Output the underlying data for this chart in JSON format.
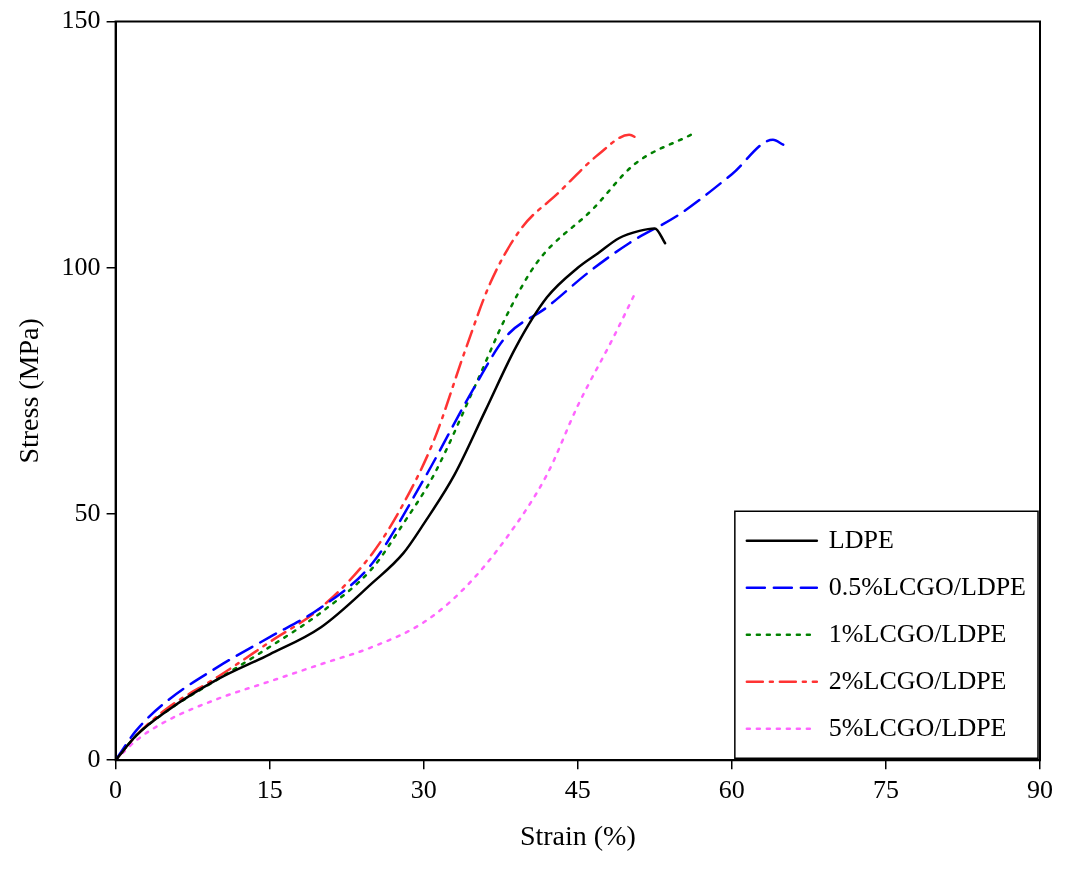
{
  "chart_data": {
    "type": "line",
    "xlabel": "Strain (%)",
    "ylabel": "Stress (MPa)",
    "xlim": [
      0,
      90
    ],
    "xticks": [
      0,
      15,
      30,
      45,
      60,
      75,
      90
    ],
    "ylim": [
      0,
      150
    ],
    "yticks": [
      0,
      50,
      100,
      150
    ],
    "grid": false,
    "legend": "bottom right",
    "marker": "none",
    "series": [
      {
        "name": "LDPE",
        "color": "#000000",
        "line_style": "solid",
        "x": [
          0,
          2,
          5,
          10,
          15,
          20,
          25,
          28,
          30,
          33,
          36,
          39,
          42,
          45,
          47,
          49,
          51,
          52.5,
          53.5
        ],
        "values": [
          0,
          5,
          10,
          16.5,
          21.5,
          27,
          36,
          42,
          48,
          58,
          71,
          84,
          94,
          100,
          103,
          106,
          107.5,
          108,
          105
        ]
      },
      {
        "name": "0.5%LCGO/LDPE",
        "color": "#0000ff",
        "line_style": "dashed",
        "x": [
          0,
          2,
          5,
          10,
          15,
          20,
          25,
          30,
          35,
          38,
          42,
          46,
          50,
          55,
          60,
          64,
          65
        ],
        "values": [
          0,
          6,
          12,
          19,
          25,
          31,
          40,
          57,
          76,
          86,
          92,
          99,
          105,
          111,
          119,
          126,
          125
        ]
      },
      {
        "name": "1%LCGO/LDPE",
        "color": "#008000",
        "line_style": "dotted",
        "x": [
          0,
          2,
          5,
          10,
          15,
          20,
          25,
          28,
          31,
          35,
          38,
          41,
          46.5,
          50.5,
          56
        ],
        "values": [
          0,
          5,
          10,
          16.5,
          23,
          30,
          39,
          48,
          58,
          76,
          90,
          101,
          112,
          121,
          127
        ]
      },
      {
        "name": "2%LCGO/LDPE",
        "color": "#ff3333",
        "line_style": "dashdot",
        "x": [
          0,
          2,
          5,
          10,
          15,
          20,
          25,
          28,
          31,
          34,
          36.5,
          39.5,
          43,
          47,
          50,
          51
        ],
        "values": [
          0,
          5,
          10.5,
          17,
          24,
          31,
          42,
          52,
          65,
          83,
          97,
          108,
          115,
          123,
          127,
          126
        ]
      },
      {
        "name": "5%LCGO/LDPE",
        "color": "#ff66ff",
        "line_style": "dotted",
        "x": [
          0,
          2,
          5,
          10,
          15,
          20,
          25,
          30,
          34,
          38,
          42,
          45,
          48.5,
          50.5
        ],
        "values": [
          0,
          4,
          8,
          12.5,
          16,
          19.5,
          23,
          28,
          35,
          45,
          58,
          72,
          86,
          94.5
        ]
      }
    ]
  }
}
